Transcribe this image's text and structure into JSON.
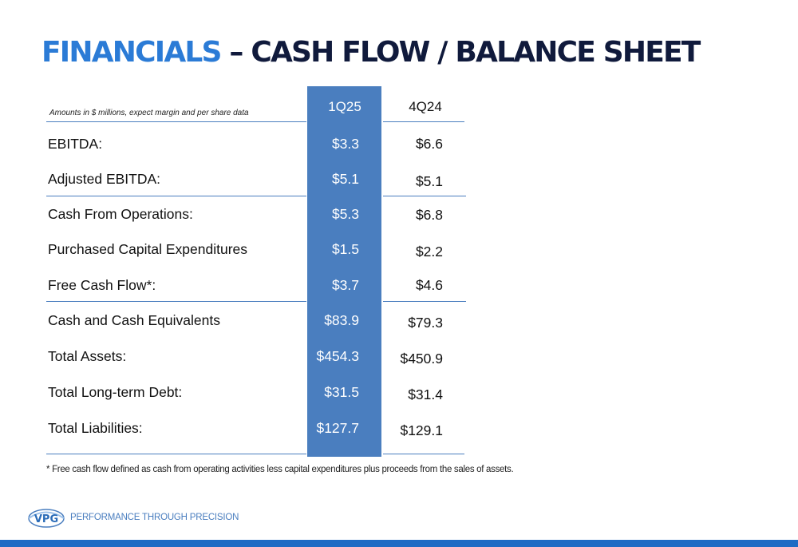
{
  "title": {
    "accent": "FINANCIALS",
    "rest": " – CASH FLOW / BALANCE SHEET"
  },
  "table": {
    "note": "Amounts in $ millions, expect margin and per share data",
    "columns": [
      "1Q25",
      "4Q24"
    ],
    "rows": [
      {
        "label": "EBITDA:",
        "q1": "$3.3",
        "q4": "$6.6"
      },
      {
        "label": "Adjusted EBITDA:",
        "q1": "$5.1",
        "q4": "$5.1"
      },
      {
        "label": "Cash From Operations:",
        "q1": "$5.3",
        "q4": "$6.8"
      },
      {
        "label": "Purchased Capital Expenditures",
        "q1": "$1.5",
        "q4": "$2.2"
      },
      {
        "label": "Free Cash Flow*:",
        "q1": "$3.7",
        "q4": "$4.6"
      },
      {
        "label": "Cash and Cash Equivalents",
        "q1": "$83.9",
        "q4": "$79.3"
      },
      {
        "label": "Total Assets:",
        "q1": "$454.3",
        "q4": "$450.9"
      },
      {
        "label": "Total Long-term Debt:",
        "q1": "$31.5",
        "q4": "$31.4"
      },
      {
        "label": "Total Liabilities:",
        "q1": "$127.7",
        "q4": "$129.1"
      }
    ]
  },
  "footnote": "* Free cash flow defined as cash from operating activities less capital expenditures plus proceeds from the sales of assets.",
  "logo": {
    "text": "VPG",
    "tagline": "PERFORMANCE THROUGH PRECISION"
  },
  "colors": {
    "accent": "#2b7bd6",
    "title_dark": "#101a3c",
    "column_fill": "#4a7ebf",
    "bar": "#1f6bc4"
  }
}
